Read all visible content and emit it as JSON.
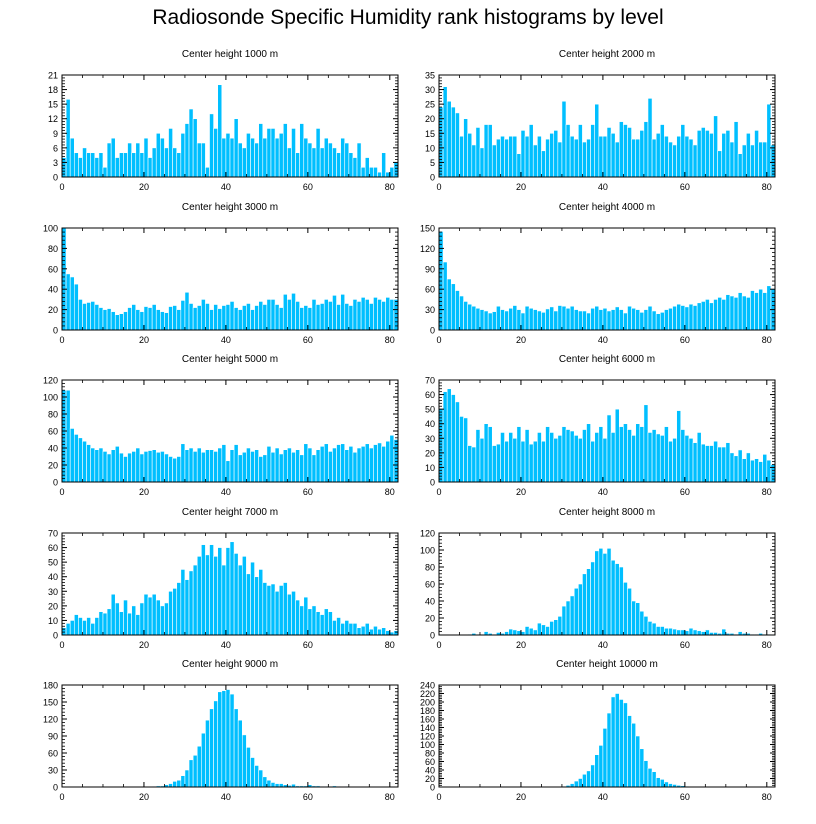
{
  "title": "Radiosonde Specific Humidity rank histograms by level",
  "colors": {
    "bar": "#00BFFF",
    "bar_edge": "#ffffff",
    "axis": "#000000"
  },
  "chart_data": [
    {
      "type": "bar",
      "title": "Center height 1000 m",
      "xlabel": "",
      "ylabel": "",
      "xlim": [
        0,
        82
      ],
      "ylim": [
        0,
        21
      ],
      "yticks": [
        0,
        3,
        6,
        9,
        12,
        15,
        18,
        21
      ],
      "ytick_labels": [
        "0",
        "3",
        "6",
        "9",
        "12",
        "15",
        "18",
        "21"
      ],
      "xticks": [
        0,
        20,
        40,
        60,
        80
      ],
      "xtick_labels": [
        "0",
        "20",
        "40",
        "60",
        "80"
      ],
      "values": [
        4,
        16,
        8,
        5,
        4,
        6,
        5,
        5,
        4,
        5,
        2,
        7,
        8,
        4,
        5,
        5,
        7,
        5,
        7,
        5,
        8,
        4,
        6,
        9,
        8,
        6,
        10,
        6,
        5,
        9,
        11,
        14,
        12,
        7,
        7,
        2,
        13,
        10,
        19,
        8,
        9,
        8,
        12,
        7,
        6,
        9,
        8,
        7,
        11,
        8,
        10,
        10,
        8,
        9,
        11,
        6,
        10,
        5,
        11,
        8,
        7,
        6,
        10,
        6,
        8,
        7,
        6,
        5,
        8,
        7,
        5,
        4,
        7,
        2,
        4,
        2,
        2,
        1,
        5,
        1,
        2,
        3
      ]
    },
    {
      "type": "bar",
      "title": "Center height 2000 m",
      "xlabel": "",
      "ylabel": "",
      "xlim": [
        0,
        82
      ],
      "ylim": [
        0,
        35
      ],
      "yticks": [
        0,
        5,
        10,
        15,
        20,
        25,
        30,
        35
      ],
      "ytick_labels": [
        "0",
        "5",
        "10",
        "15",
        "20",
        "25",
        "30",
        "35"
      ],
      "xticks": [
        0,
        20,
        40,
        60,
        80
      ],
      "xtick_labels": [
        "0",
        "20",
        "40",
        "60",
        "80"
      ],
      "values": [
        24,
        31,
        26,
        24,
        22,
        14,
        20,
        15,
        11,
        17,
        10,
        18,
        18,
        11,
        13,
        14,
        13,
        14,
        14,
        8,
        16,
        14,
        18,
        11,
        14,
        9,
        13,
        15,
        16,
        12,
        26,
        18,
        14,
        13,
        18,
        12,
        13,
        18,
        25,
        14,
        14,
        17,
        15,
        12,
        19,
        18,
        17,
        13,
        13,
        16,
        19,
        27,
        13,
        15,
        18,
        14,
        12,
        11,
        14,
        18,
        14,
        13,
        11,
        16,
        17,
        16,
        15,
        21,
        9,
        15,
        16,
        12,
        19,
        8,
        11,
        15,
        11,
        16,
        12,
        12,
        25,
        11
      ]
    },
    {
      "type": "bar",
      "title": "Center height 3000 m",
      "xlabel": "",
      "ylabel": "",
      "xlim": [
        0,
        82
      ],
      "ylim": [
        0,
        100
      ],
      "yticks": [
        0,
        20,
        40,
        60,
        80,
        100
      ],
      "ytick_labels": [
        "0",
        "20",
        "40",
        "60",
        "80",
        "100"
      ],
      "xticks": [
        0,
        20,
        40,
        60,
        80
      ],
      "xtick_labels": [
        "0",
        "20",
        "40",
        "60",
        "80"
      ],
      "values": [
        100,
        55,
        52,
        45,
        30,
        26,
        27,
        28,
        25,
        22,
        20,
        21,
        18,
        15,
        16,
        18,
        22,
        25,
        20,
        18,
        23,
        22,
        25,
        20,
        18,
        17,
        23,
        24,
        20,
        29,
        37,
        26,
        22,
        24,
        30,
        26,
        20,
        25,
        21,
        24,
        25,
        28,
        22,
        20,
        24,
        26,
        20,
        24,
        28,
        25,
        30,
        30,
        25,
        22,
        35,
        30,
        36,
        28,
        22,
        24,
        22,
        30,
        25,
        26,
        30,
        28,
        34,
        25,
        35,
        26,
        24,
        30,
        28,
        32,
        30,
        26,
        32,
        30,
        28,
        32,
        30,
        30
      ]
    },
    {
      "type": "bar",
      "title": "Center height 4000 m",
      "xlabel": "",
      "ylabel": "",
      "xlim": [
        0,
        82
      ],
      "ylim": [
        0,
        150
      ],
      "yticks": [
        0,
        30,
        60,
        90,
        120,
        150
      ],
      "ytick_labels": [
        "0",
        "30",
        "60",
        "90",
        "120",
        "150"
      ],
      "xticks": [
        0,
        20,
        40,
        60,
        80
      ],
      "xtick_labels": [
        "0",
        "20",
        "40",
        "60",
        "80"
      ],
      "values": [
        145,
        100,
        75,
        68,
        58,
        50,
        42,
        38,
        35,
        32,
        30,
        28,
        25,
        27,
        35,
        30,
        28,
        32,
        36,
        30,
        25,
        35,
        32,
        30,
        28,
        26,
        31,
        34,
        28,
        36,
        35,
        32,
        35,
        30,
        28,
        28,
        25,
        32,
        35,
        30,
        32,
        28,
        30,
        34,
        30,
        25,
        35,
        32,
        30,
        26,
        30,
        35,
        28,
        24,
        26,
        30,
        32,
        35,
        38,
        36,
        34,
        38,
        36,
        40,
        42,
        45,
        40,
        45,
        48,
        45,
        52,
        50,
        48,
        55,
        50,
        48,
        58,
        55,
        60,
        55,
        65,
        60
      ]
    },
    {
      "type": "bar",
      "title": "Center height 5000 m",
      "xlabel": "",
      "ylabel": "",
      "xlim": [
        0,
        82
      ],
      "ylim": [
        0,
        120
      ],
      "yticks": [
        0,
        20,
        40,
        60,
        80,
        100,
        120
      ],
      "ytick_labels": [
        "0",
        "20",
        "40",
        "60",
        "80",
        "100",
        "120"
      ],
      "xticks": [
        0,
        20,
        40,
        60,
        80
      ],
      "xtick_labels": [
        "0",
        "20",
        "40",
        "60",
        "80"
      ],
      "values": [
        108,
        108,
        63,
        56,
        52,
        48,
        44,
        40,
        38,
        40,
        36,
        33,
        38,
        42,
        34,
        30,
        34,
        36,
        40,
        33,
        36,
        37,
        38,
        35,
        36,
        33,
        30,
        28,
        30,
        45,
        38,
        40,
        36,
        40,
        35,
        38,
        38,
        36,
        40,
        44,
        25,
        38,
        44,
        32,
        35,
        40,
        36,
        38,
        30,
        32,
        42,
        35,
        40,
        33,
        38,
        40,
        35,
        38,
        32,
        45,
        40,
        32,
        38,
        42,
        45,
        36,
        40,
        44,
        45,
        38,
        42,
        35,
        40,
        42,
        45,
        40,
        44,
        46,
        42,
        48,
        55,
        50
      ]
    },
    {
      "type": "bar",
      "title": "Center height 6000 m",
      "xlabel": "",
      "ylabel": "",
      "xlim": [
        0,
        82
      ],
      "ylim": [
        0,
        70
      ],
      "yticks": [
        0,
        10,
        20,
        30,
        40,
        50,
        60,
        70
      ],
      "ytick_labels": [
        "0",
        "10",
        "20",
        "30",
        "40",
        "50",
        "60",
        "70"
      ],
      "xticks": [
        0,
        20,
        40,
        60,
        80
      ],
      "xtick_labels": [
        "0",
        "20",
        "40",
        "60",
        "80"
      ],
      "values": [
        50,
        62,
        64,
        60,
        55,
        45,
        44,
        25,
        24,
        36,
        30,
        40,
        38,
        25,
        26,
        34,
        28,
        34,
        30,
        38,
        28,
        36,
        26,
        28,
        34,
        28,
        38,
        34,
        30,
        32,
        38,
        36,
        35,
        32,
        30,
        36,
        40,
        28,
        34,
        38,
        30,
        46,
        34,
        50,
        38,
        40,
        36,
        32,
        40,
        38,
        53,
        34,
        36,
        33,
        32,
        38,
        28,
        30,
        49,
        36,
        32,
        30,
        27,
        34,
        26,
        25,
        25,
        28,
        24,
        24,
        27,
        20,
        18,
        22,
        16,
        20,
        15,
        16,
        14,
        19,
        15,
        12
      ]
    },
    {
      "type": "bar",
      "title": "Center height 7000 m",
      "xlabel": "",
      "ylabel": "",
      "xlim": [
        0,
        82
      ],
      "ylim": [
        0,
        70
      ],
      "yticks": [
        0,
        10,
        20,
        30,
        40,
        50,
        60,
        70
      ],
      "ytick_labels": [
        "0",
        "10",
        "20",
        "30",
        "40",
        "50",
        "60",
        "70"
      ],
      "xticks": [
        0,
        20,
        40,
        60,
        80
      ],
      "xtick_labels": [
        "0",
        "20",
        "40",
        "60",
        "80"
      ],
      "values": [
        5,
        8,
        10,
        14,
        12,
        10,
        12,
        8,
        12,
        16,
        15,
        18,
        28,
        22,
        16,
        24,
        15,
        20,
        14,
        22,
        28,
        26,
        28,
        24,
        20,
        22,
        30,
        32,
        36,
        45,
        38,
        44,
        48,
        54,
        62,
        55,
        62,
        54,
        60,
        48,
        60,
        64,
        56,
        48,
        54,
        42,
        50,
        40,
        45,
        36,
        34,
        35,
        30,
        34,
        36,
        28,
        30,
        24,
        20,
        26,
        18,
        20,
        16,
        14,
        18,
        16,
        10,
        12,
        8,
        10,
        8,
        8,
        5,
        6,
        8,
        4,
        6,
        4,
        5,
        3,
        2,
        3
      ]
    },
    {
      "type": "bar",
      "title": "Center height 8000 m",
      "xlabel": "",
      "ylabel": "",
      "xlim": [
        0,
        82
      ],
      "ylim": [
        0,
        120
      ],
      "yticks": [
        0,
        20,
        40,
        60,
        80,
        100,
        120
      ],
      "ytick_labels": [
        "0",
        "20",
        "40",
        "60",
        "80",
        "100",
        "120"
      ],
      "xticks": [
        0,
        20,
        40,
        60,
        80
      ],
      "xtick_labels": [
        "0",
        "20",
        "40",
        "60",
        "80"
      ],
      "values": [
        0,
        0,
        0,
        0,
        0,
        0,
        0,
        1,
        2,
        1,
        1,
        4,
        2,
        1,
        3,
        2,
        4,
        7,
        6,
        5,
        4,
        10,
        8,
        6,
        14,
        12,
        10,
        16,
        18,
        22,
        34,
        40,
        46,
        55,
        60,
        72,
        78,
        86,
        99,
        102,
        96,
        102,
        88,
        84,
        80,
        62,
        55,
        40,
        38,
        28,
        22,
        16,
        14,
        10,
        10,
        8,
        8,
        7,
        6,
        6,
        5,
        8,
        6,
        5,
        4,
        6,
        3,
        3,
        2,
        7,
        2,
        2,
        1,
        4,
        2,
        2,
        1,
        1,
        2,
        1,
        1,
        0
      ]
    },
    {
      "type": "bar",
      "title": "Center height 9000 m",
      "xlabel": "",
      "ylabel": "",
      "xlim": [
        0,
        82
      ],
      "ylim": [
        0,
        180
      ],
      "yticks": [
        0,
        30,
        60,
        90,
        120,
        150,
        180
      ],
      "ytick_labels": [
        "0",
        "30",
        "60",
        "90",
        "120",
        "150",
        "180"
      ],
      "xticks": [
        0,
        20,
        40,
        60,
        80
      ],
      "xtick_labels": [
        "0",
        "20",
        "40",
        "60",
        "80"
      ],
      "values": [
        0,
        0,
        0,
        0,
        0,
        0,
        0,
        0,
        0,
        0,
        0,
        0,
        0,
        0,
        0,
        0,
        0,
        0,
        0,
        0,
        0,
        0,
        1,
        2,
        2,
        4,
        6,
        10,
        12,
        20,
        30,
        48,
        56,
        72,
        95,
        118,
        138,
        152,
        168,
        170,
        172,
        164,
        138,
        118,
        92,
        70,
        52,
        38,
        30,
        18,
        12,
        8,
        6,
        6,
        4,
        3,
        5,
        2,
        2,
        2,
        4,
        2,
        2,
        1,
        1,
        1,
        2,
        1,
        0,
        1,
        0,
        0,
        0,
        0,
        0,
        0,
        0,
        0,
        0,
        0,
        0,
        0
      ]
    },
    {
      "type": "bar",
      "title": "Center height 10000 m",
      "xlabel": "",
      "ylabel": "",
      "xlim": [
        0,
        82
      ],
      "ylim": [
        0,
        240
      ],
      "yticks": [
        0,
        20,
        40,
        60,
        80,
        100,
        120,
        140,
        160,
        180,
        200,
        220,
        240
      ],
      "ytick_labels": [
        "0",
        "20",
        "40",
        "60",
        "80",
        "100",
        "120",
        "140",
        "160",
        "180",
        "200",
        "220",
        "240"
      ],
      "xticks": [
        0,
        20,
        40,
        60,
        80
      ],
      "xtick_labels": [
        "0",
        "20",
        "40",
        "60",
        "80"
      ],
      "values": [
        0,
        0,
        0,
        0,
        0,
        0,
        0,
        0,
        0,
        0,
        0,
        0,
        0,
        0,
        0,
        0,
        0,
        0,
        0,
        0,
        0,
        0,
        0,
        0,
        0,
        0,
        0,
        0,
        0,
        1,
        2,
        4,
        8,
        14,
        20,
        30,
        38,
        52,
        76,
        98,
        138,
        174,
        212,
        220,
        206,
        198,
        168,
        150,
        120,
        90,
        62,
        44,
        36,
        22,
        18,
        12,
        8,
        6,
        4,
        3,
        2,
        1,
        1,
        1,
        0,
        0,
        0,
        0,
        0,
        0,
        0,
        0,
        0,
        0,
        0,
        0,
        0,
        0,
        0,
        0,
        0,
        0
      ]
    }
  ]
}
